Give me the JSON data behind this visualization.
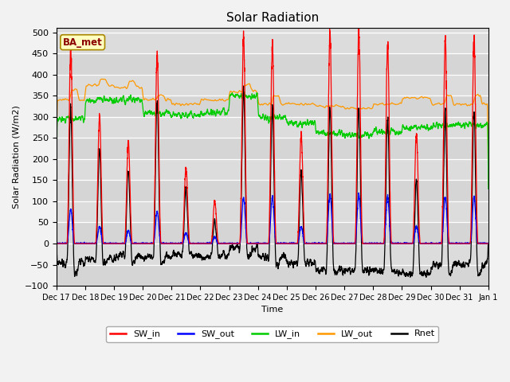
{
  "title": "Solar Radiation",
  "ylabel": "Solar Radiation (W/m2)",
  "xlabel": "Time",
  "ylim": [
    -100,
    510
  ],
  "yticks": [
    -100,
    -50,
    0,
    50,
    100,
    150,
    200,
    250,
    300,
    350,
    400,
    450,
    500
  ],
  "bg_color": "#dcdcdc",
  "site_label": "BA_met",
  "legend_entries": [
    "SW_in",
    "SW_out",
    "LW_in",
    "LW_out",
    "Rnet"
  ],
  "legend_colors": [
    "#ff0000",
    "#0000ff",
    "#00cc00",
    "#ff9900",
    "#000000"
  ],
  "date_labels": [
    "Dec 17",
    "Dec 18",
    "Dec 19",
    "Dec 20",
    "Dec 21",
    "Dec 22",
    "Dec 23",
    "Dec 24",
    "Dec 25",
    "Dec 26",
    "Dec 27",
    "Dec 28",
    "Dec 29",
    "Dec 30",
    "Dec 31",
    "Jan 1"
  ],
  "n_days": 15,
  "n_pts": 4320,
  "day_peaks_SW": [
    460,
    300,
    240,
    450,
    180,
    100,
    490,
    470,
    260,
    500,
    500,
    470,
    260,
    480,
    480
  ],
  "day_peaks_blue": [
    80,
    40,
    30,
    75,
    25,
    15,
    110,
    110,
    40,
    115,
    115,
    110,
    40,
    110,
    110
  ]
}
